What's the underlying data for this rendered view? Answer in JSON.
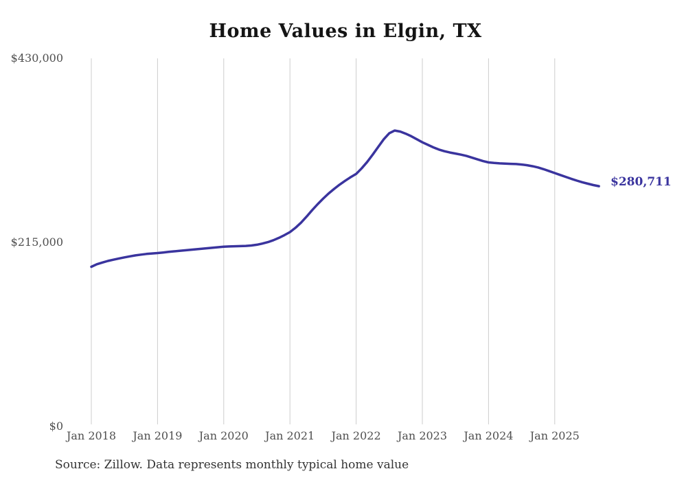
{
  "accent_color": "#3a349e",
  "grid_color": "#cccccc",
  "tick_label_color": "#4f4f4f",
  "chart_data": {
    "type": "line",
    "title": "Home Values in Elgin, TX",
    "source": "Source: Zillow. Data represents monthly typical home value",
    "end_label": "$280,711",
    "latest_value": 280711,
    "xlabel": "",
    "ylabel": "",
    "ylim": [
      0,
      430000
    ],
    "grid": "vertical-only",
    "legend": "none",
    "y_ticks": [
      {
        "label": "$430,000",
        "value": 430000
      },
      {
        "label": "$215,000",
        "value": 215000
      },
      {
        "label": "$0",
        "value": 0
      }
    ],
    "x_ticks": [
      {
        "label": "Jan 2018",
        "month_index": 0
      },
      {
        "label": "Jan 2019",
        "month_index": 12
      },
      {
        "label": "Jan 2020",
        "month_index": 24
      },
      {
        "label": "Jan 2021",
        "month_index": 36
      },
      {
        "label": "Jan 2022",
        "month_index": 48
      },
      {
        "label": "Jan 2023",
        "month_index": 60
      },
      {
        "label": "Jan 2024",
        "month_index": 72
      },
      {
        "label": "Jan 2025",
        "month_index": 84
      }
    ],
    "categories": [
      "2018-01",
      "2018-02",
      "2018-03",
      "2018-04",
      "2018-05",
      "2018-06",
      "2018-07",
      "2018-08",
      "2018-09",
      "2018-10",
      "2018-11",
      "2018-12",
      "2019-01",
      "2019-02",
      "2019-03",
      "2019-04",
      "2019-05",
      "2019-06",
      "2019-07",
      "2019-08",
      "2019-09",
      "2019-10",
      "2019-11",
      "2019-12",
      "2020-01",
      "2020-02",
      "2020-03",
      "2020-04",
      "2020-05",
      "2020-06",
      "2020-07",
      "2020-08",
      "2020-09",
      "2020-10",
      "2020-11",
      "2020-12",
      "2021-01",
      "2021-02",
      "2021-03",
      "2021-04",
      "2021-05",
      "2021-06",
      "2021-07",
      "2021-08",
      "2021-09",
      "2021-10",
      "2021-11",
      "2021-12",
      "2022-01",
      "2022-02",
      "2022-03",
      "2022-04",
      "2022-05",
      "2022-06",
      "2022-07",
      "2022-08",
      "2022-09",
      "2022-10",
      "2022-11",
      "2022-12",
      "2023-01",
      "2023-02",
      "2023-03",
      "2023-04",
      "2023-05",
      "2023-06",
      "2023-07",
      "2023-08",
      "2023-09",
      "2023-10",
      "2023-11",
      "2023-12",
      "2024-01",
      "2024-02",
      "2024-03",
      "2024-04",
      "2024-05",
      "2024-06",
      "2024-07",
      "2024-08",
      "2024-09",
      "2024-10",
      "2024-11",
      "2024-12",
      "2025-01",
      "2025-02",
      "2025-03",
      "2025-04",
      "2025-05",
      "2025-06",
      "2025-07",
      "2025-08",
      "2025-09"
    ],
    "series": [
      {
        "name": "Typical home value",
        "values": [
          186500,
          189500,
          191500,
          193300,
          194800,
          196200,
          197500,
          198700,
          199800,
          200700,
          201500,
          202100,
          202600,
          203200,
          203900,
          204600,
          205200,
          205800,
          206400,
          207000,
          207600,
          208200,
          208800,
          209400,
          210000,
          210300,
          210500,
          210700,
          210900,
          211400,
          212300,
          213600,
          215300,
          217600,
          220300,
          223500,
          227000,
          232000,
          238000,
          245000,
          252500,
          259500,
          266000,
          272000,
          277500,
          282500,
          287000,
          291200,
          295000,
          301500,
          309000,
          317500,
          326500,
          335500,
          342500,
          345700,
          344500,
          342000,
          339000,
          335500,
          332000,
          329000,
          326000,
          323500,
          321500,
          320000,
          318800,
          317500,
          316000,
          314000,
          312000,
          310000,
          308500,
          307800,
          307300,
          307000,
          306800,
          306500,
          306000,
          305200,
          304000,
          302500,
          300500,
          298300,
          296000,
          293800,
          291500,
          289300,
          287200,
          285300,
          283600,
          282000,
          280711
        ]
      }
    ]
  }
}
